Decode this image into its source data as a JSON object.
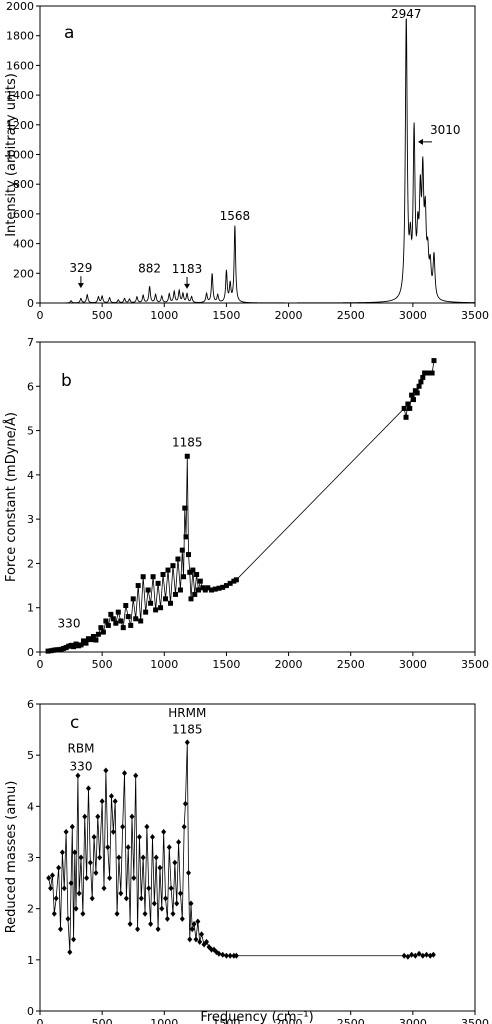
{
  "chart_data": [
    {
      "type": "line",
      "panel_label": "a",
      "ylabel": "Intensity (arbitrary units)",
      "xlabel": "",
      "xlim": [
        0,
        3500
      ],
      "ylim": [
        0,
        2000
      ],
      "xticks": [
        0,
        500,
        1000,
        1500,
        2000,
        2500,
        3000,
        3500
      ],
      "yticks": [
        0,
        200,
        400,
        600,
        800,
        1000,
        1200,
        1400,
        1600,
        1800,
        2000
      ],
      "grid": false,
      "annotations": [
        {
          "text": "329",
          "x": 329,
          "y": 100,
          "arrow": true
        },
        {
          "text": "882",
          "x": 882,
          "y": 165,
          "arrow": false
        },
        {
          "text": "1183",
          "x": 1183,
          "y": 95,
          "arrow": true
        },
        {
          "text": "1568",
          "x": 1568,
          "y": 520,
          "arrow": false
        },
        {
          "text": "2947",
          "x": 2947,
          "y": 1880,
          "arrow": false
        },
        {
          "text": "3010",
          "x": 3050,
          "y": 1085,
          "arrow": true
        }
      ],
      "peaks": [
        {
          "x": 250,
          "y": 15
        },
        {
          "x": 329,
          "y": 30
        },
        {
          "x": 380,
          "y": 55
        },
        {
          "x": 470,
          "y": 40
        },
        {
          "x": 500,
          "y": 45
        },
        {
          "x": 560,
          "y": 35
        },
        {
          "x": 630,
          "y": 20
        },
        {
          "x": 680,
          "y": 30
        },
        {
          "x": 720,
          "y": 25
        },
        {
          "x": 780,
          "y": 40
        },
        {
          "x": 830,
          "y": 50
        },
        {
          "x": 882,
          "y": 110
        },
        {
          "x": 930,
          "y": 55
        },
        {
          "x": 980,
          "y": 45
        },
        {
          "x": 1040,
          "y": 60
        },
        {
          "x": 1080,
          "y": 75
        },
        {
          "x": 1120,
          "y": 80
        },
        {
          "x": 1150,
          "y": 60
        },
        {
          "x": 1183,
          "y": 60
        },
        {
          "x": 1220,
          "y": 40
        },
        {
          "x": 1340,
          "y": 60
        },
        {
          "x": 1385,
          "y": 195
        },
        {
          "x": 1430,
          "y": 50
        },
        {
          "x": 1500,
          "y": 210
        },
        {
          "x": 1530,
          "y": 120
        },
        {
          "x": 1568,
          "y": 515
        },
        {
          "x": 2947,
          "y": 1880
        },
        {
          "x": 2980,
          "y": 300
        },
        {
          "x": 3010,
          "y": 1085
        },
        {
          "x": 3040,
          "y": 350
        },
        {
          "x": 3060,
          "y": 600
        },
        {
          "x": 3080,
          "y": 740
        },
        {
          "x": 3100,
          "y": 480
        },
        {
          "x": 3120,
          "y": 250
        },
        {
          "x": 3140,
          "y": 200
        },
        {
          "x": 3170,
          "y": 290
        }
      ]
    },
    {
      "type": "scatter",
      "panel_label": "b",
      "ylabel": "Force constant (mDyne/Å)",
      "xlabel": "",
      "xlim": [
        0,
        3500
      ],
      "ylim": [
        0,
        7
      ],
      "xticks": [
        0,
        500,
        1000,
        1500,
        2000,
        2500,
        3000,
        3500
      ],
      "yticks": [
        0,
        1,
        2,
        3,
        4,
        5,
        6,
        7
      ],
      "grid": false,
      "marker": "square",
      "annotations": [
        {
          "text": "1185",
          "x": 1185,
          "y": 4.42
        },
        {
          "text": "330",
          "x": 330,
          "y": 0.15
        }
      ],
      "points": [
        [
          65,
          0.02
        ],
        [
          90,
          0.03
        ],
        [
          110,
          0.04
        ],
        [
          130,
          0.05
        ],
        [
          150,
          0.05
        ],
        [
          170,
          0.06
        ],
        [
          190,
          0.08
        ],
        [
          210,
          0.1
        ],
        [
          230,
          0.13
        ],
        [
          250,
          0.15
        ],
        [
          270,
          0.12
        ],
        [
          290,
          0.18
        ],
        [
          310,
          0.14
        ],
        [
          330,
          0.16
        ],
        [
          350,
          0.25
        ],
        [
          370,
          0.2
        ],
        [
          390,
          0.3
        ],
        [
          410,
          0.28
        ],
        [
          430,
          0.35
        ],
        [
          450,
          0.27
        ],
        [
          470,
          0.4
        ],
        [
          490,
          0.55
        ],
        [
          510,
          0.45
        ],
        [
          530,
          0.7
        ],
        [
          550,
          0.6
        ],
        [
          570,
          0.85
        ],
        [
          590,
          0.75
        ],
        [
          610,
          0.65
        ],
        [
          630,
          0.9
        ],
        [
          650,
          0.7
        ],
        [
          670,
          0.55
        ],
        [
          690,
          1.05
        ],
        [
          710,
          0.8
        ],
        [
          730,
          0.6
        ],
        [
          750,
          1.2
        ],
        [
          770,
          0.75
        ],
        [
          790,
          1.5
        ],
        [
          810,
          0.7
        ],
        [
          830,
          1.7
        ],
        [
          850,
          0.9
        ],
        [
          870,
          1.4
        ],
        [
          890,
          1.1
        ],
        [
          910,
          1.7
        ],
        [
          930,
          0.95
        ],
        [
          950,
          1.55
        ],
        [
          970,
          1.0
        ],
        [
          990,
          1.75
        ],
        [
          1010,
          1.2
        ],
        [
          1030,
          1.85
        ],
        [
          1050,
          1.1
        ],
        [
          1070,
          1.95
        ],
        [
          1090,
          1.3
        ],
        [
          1110,
          2.1
        ],
        [
          1130,
          1.4
        ],
        [
          1145,
          2.3
        ],
        [
          1155,
          1.7
        ],
        [
          1165,
          3.25
        ],
        [
          1175,
          2.6
        ],
        [
          1185,
          4.42
        ],
        [
          1195,
          2.2
        ],
        [
          1205,
          1.8
        ],
        [
          1215,
          1.2
        ],
        [
          1230,
          1.85
        ],
        [
          1245,
          1.3
        ],
        [
          1260,
          1.75
        ],
        [
          1275,
          1.4
        ],
        [
          1290,
          1.6
        ],
        [
          1310,
          1.45
        ],
        [
          1330,
          1.4
        ],
        [
          1350,
          1.45
        ],
        [
          1380,
          1.4
        ],
        [
          1410,
          1.42
        ],
        [
          1440,
          1.44
        ],
        [
          1470,
          1.46
        ],
        [
          1500,
          1.5
        ],
        [
          1530,
          1.55
        ],
        [
          1560,
          1.6
        ],
        [
          1580,
          1.63
        ],
        [
          2930,
          5.5
        ],
        [
          2945,
          5.3
        ],
        [
          2960,
          5.6
        ],
        [
          2975,
          5.5
        ],
        [
          2990,
          5.8
        ],
        [
          3005,
          5.7
        ],
        [
          3020,
          5.9
        ],
        [
          3035,
          5.85
        ],
        [
          3050,
          6.0
        ],
        [
          3065,
          6.1
        ],
        [
          3080,
          6.2
        ],
        [
          3095,
          6.3
        ],
        [
          3110,
          6.3
        ],
        [
          3125,
          6.3
        ],
        [
          3140,
          6.3
        ],
        [
          3155,
          6.3
        ],
        [
          3170,
          6.58
        ]
      ]
    },
    {
      "type": "scatter",
      "panel_label": "c",
      "ylabel": "Reduced masses (amu)",
      "xlabel": "Frequency (cm⁻¹)",
      "xlim": [
        0,
        3500
      ],
      "ylim": [
        0,
        6
      ],
      "xticks": [
        0,
        500,
        1000,
        1500,
        2000,
        2500,
        3000,
        3500
      ],
      "yticks": [
        0,
        1,
        2,
        3,
        4,
        5,
        6
      ],
      "grid": false,
      "marker": "diamond",
      "annotations": [
        {
          "text": "RBM",
          "x": 330,
          "y": 5.05
        },
        {
          "text": "330",
          "x": 330,
          "y": 4.7
        },
        {
          "text": "HRMM",
          "x": 1185,
          "y": 5.75
        },
        {
          "text": "1185",
          "x": 1185,
          "y": 5.42
        }
      ],
      "points": [
        [
          70,
          2.6
        ],
        [
          85,
          2.4
        ],
        [
          100,
          2.65
        ],
        [
          115,
          1.9
        ],
        [
          130,
          2.2
        ],
        [
          150,
          2.8
        ],
        [
          165,
          1.6
        ],
        [
          180,
          3.1
        ],
        [
          195,
          2.4
        ],
        [
          210,
          3.5
        ],
        [
          225,
          1.8
        ],
        [
          240,
          1.15
        ],
        [
          250,
          2.5
        ],
        [
          260,
          3.6
        ],
        [
          270,
          1.4
        ],
        [
          280,
          3.1
        ],
        [
          290,
          2.0
        ],
        [
          305,
          4.6
        ],
        [
          315,
          2.3
        ],
        [
          330,
          3.0
        ],
        [
          345,
          1.9
        ],
        [
          360,
          3.8
        ],
        [
          375,
          2.6
        ],
        [
          390,
          4.35
        ],
        [
          405,
          2.9
        ],
        [
          420,
          2.2
        ],
        [
          435,
          3.4
        ],
        [
          450,
          2.7
        ],
        [
          465,
          3.8
        ],
        [
          480,
          3.0
        ],
        [
          500,
          4.1
        ],
        [
          515,
          2.4
        ],
        [
          530,
          4.7
        ],
        [
          545,
          3.2
        ],
        [
          560,
          2.6
        ],
        [
          575,
          4.2
        ],
        [
          590,
          3.5
        ],
        [
          605,
          4.1
        ],
        [
          620,
          1.9
        ],
        [
          635,
          3.0
        ],
        [
          650,
          2.3
        ],
        [
          665,
          3.6
        ],
        [
          680,
          4.65
        ],
        [
          695,
          2.2
        ],
        [
          710,
          3.2
        ],
        [
          725,
          1.7
        ],
        [
          740,
          3.8
        ],
        [
          755,
          2.6
        ],
        [
          770,
          4.6
        ],
        [
          785,
          1.6
        ],
        [
          800,
          3.4
        ],
        [
          815,
          2.2
        ],
        [
          830,
          3.0
        ],
        [
          845,
          1.9
        ],
        [
          860,
          3.6
        ],
        [
          875,
          2.4
        ],
        [
          890,
          1.7
        ],
        [
          905,
          3.4
        ],
        [
          920,
          2.1
        ],
        [
          935,
          3.0
        ],
        [
          950,
          1.6
        ],
        [
          965,
          2.8
        ],
        [
          980,
          2.0
        ],
        [
          995,
          3.5
        ],
        [
          1010,
          2.2
        ],
        [
          1025,
          1.8
        ],
        [
          1040,
          3.2
        ],
        [
          1055,
          2.4
        ],
        [
          1070,
          1.9
        ],
        [
          1085,
          2.9
        ],
        [
          1100,
          2.1
        ],
        [
          1115,
          3.3
        ],
        [
          1130,
          2.3
        ],
        [
          1145,
          1.8
        ],
        [
          1160,
          3.6
        ],
        [
          1170,
          4.05
        ],
        [
          1185,
          5.25
        ],
        [
          1195,
          2.7
        ],
        [
          1205,
          1.4
        ],
        [
          1215,
          2.1
        ],
        [
          1225,
          1.6
        ],
        [
          1240,
          1.7
        ],
        [
          1255,
          1.4
        ],
        [
          1270,
          1.75
        ],
        [
          1285,
          1.35
        ],
        [
          1300,
          1.5
        ],
        [
          1320,
          1.3
        ],
        [
          1340,
          1.35
        ],
        [
          1360,
          1.25
        ],
        [
          1380,
          1.2
        ],
        [
          1400,
          1.2
        ],
        [
          1420,
          1.15
        ],
        [
          1440,
          1.12
        ],
        [
          1470,
          1.1
        ],
        [
          1500,
          1.08
        ],
        [
          1530,
          1.08
        ],
        [
          1560,
          1.08
        ],
        [
          1580,
          1.08
        ],
        [
          2930,
          1.08
        ],
        [
          2960,
          1.06
        ],
        [
          2990,
          1.1
        ],
        [
          3020,
          1.08
        ],
        [
          3050,
          1.12
        ],
        [
          3080,
          1.08
        ],
        [
          3110,
          1.1
        ],
        [
          3140,
          1.08
        ],
        [
          3165,
          1.1
        ]
      ]
    }
  ]
}
